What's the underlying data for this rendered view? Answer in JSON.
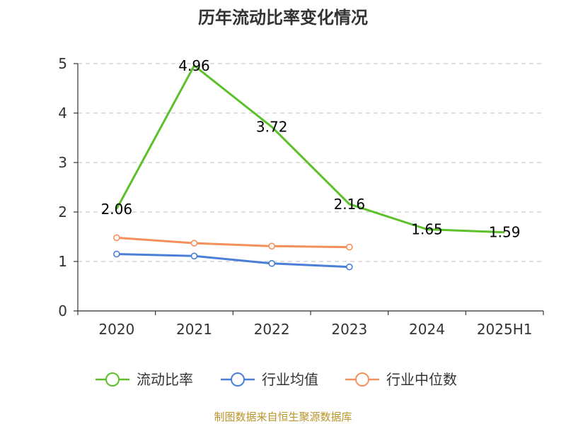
{
  "chart_data": {
    "type": "line",
    "title": "历年流动比率变化情况",
    "categories": [
      "2020",
      "2021",
      "2022",
      "2023",
      "2024",
      "2025H1"
    ],
    "yticks": [
      "0",
      "1",
      "2",
      "3",
      "4",
      "5"
    ],
    "ylim": [
      0,
      5
    ],
    "grid": true,
    "legend_position": "bottom",
    "series": [
      {
        "name": "流动比率",
        "color": "#5bc02a",
        "values": [
          2.06,
          4.96,
          3.72,
          2.16,
          1.65,
          1.59
        ],
        "labels": [
          "2.06",
          "4.96",
          "3.72",
          "2.16",
          "1.65",
          "1.59"
        ]
      },
      {
        "name": "行业均值",
        "color": "#4a7fd8",
        "values": [
          1.15,
          1.11,
          0.96,
          0.89,
          null,
          null
        ]
      },
      {
        "name": "行业中位数",
        "color": "#f4915a",
        "values": [
          1.48,
          1.37,
          1.31,
          1.29,
          null,
          null
        ]
      }
    ]
  },
  "footer": {
    "source": "制图数据来自恒生聚源数据库"
  }
}
